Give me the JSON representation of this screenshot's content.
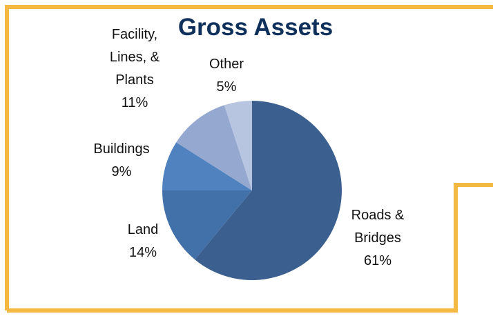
{
  "chart_data": {
    "type": "pie",
    "title": "Gross Assets",
    "categories": [
      "Roads & Bridges",
      "Land",
      "Buildings",
      "Facility, Lines, & Plants",
      "Other"
    ],
    "values": [
      61,
      14,
      9,
      11,
      5
    ],
    "value_labels": [
      "61%",
      "14%",
      "9%",
      "11%",
      "5%"
    ],
    "colors": [
      "#3b5f8e",
      "#4270a8",
      "#5082c0",
      "#95a8d0",
      "#b8c5e1"
    ]
  }
}
